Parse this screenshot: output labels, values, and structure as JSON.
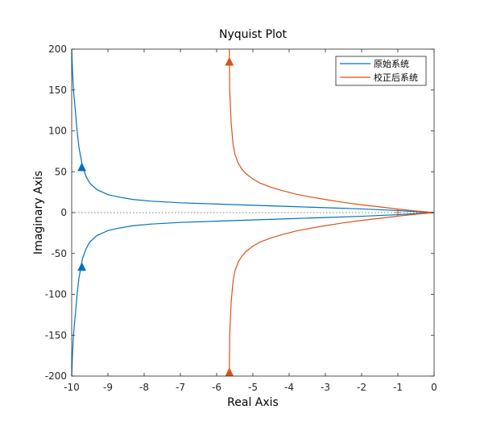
{
  "chart_data": {
    "type": "line",
    "title": "Nyquist Plot",
    "xlabel": "Real Axis",
    "ylabel": "Imaginary Axis",
    "xlim": [
      -10,
      0
    ],
    "ylim": [
      -200,
      200
    ],
    "xticks": [
      -10,
      -9,
      -8,
      -7,
      -6,
      -5,
      -4,
      -3,
      -2,
      -1,
      0
    ],
    "yticks": [
      -200,
      -150,
      -100,
      -50,
      0,
      50,
      100,
      150,
      200
    ],
    "grid": false,
    "legend_position": "top-right",
    "critical_point": {
      "x": -1,
      "y": 0,
      "marker": "+"
    },
    "zero_line": {
      "y": 0,
      "style": "dotted"
    },
    "series": [
      {
        "name": "原始系统",
        "color": "#0072BD",
        "x": [
          -10,
          -9.98,
          -9.95,
          -9.9,
          -9.85,
          -9.8,
          -9.7,
          -9.6,
          -9.5,
          -9.3,
          -9.0,
          -8.7,
          -8.3,
          -7.8,
          -7.0,
          -6.0,
          -5.0,
          -4.0,
          -3.0,
          -2.0,
          -1.0,
          -0.5,
          0
        ],
        "y_upper": [
          200,
          175,
          150,
          125,
          100,
          80,
          56,
          44,
          36,
          28,
          22,
          19,
          16,
          14,
          12,
          10.5,
          9,
          7.5,
          6,
          4.5,
          2.5,
          1.2,
          0
        ],
        "arrows": [
          {
            "x": -9.72,
            "y": 56,
            "direction": "up"
          },
          {
            "x": -9.72,
            "y": -66,
            "direction": "up"
          }
        ]
      },
      {
        "name": "校正后系统",
        "color": "#D95319",
        "x": [
          -5.65,
          -5.64,
          -5.6,
          -5.55,
          -5.5,
          -5.4,
          -5.3,
          -5.2,
          -5.0,
          -4.8,
          -4.5,
          -4.2,
          -3.8,
          -3.4,
          -3.0,
          -2.5,
          -2.0,
          -1.5,
          -1.0,
          -0.5,
          0
        ],
        "y_upper": [
          200,
          150,
          110,
          85,
          72,
          60,
          53,
          48,
          41,
          36,
          31,
          27,
          22.5,
          19,
          16,
          12.5,
          9.5,
          7,
          4.3,
          2,
          0
        ],
        "arrows": [
          {
            "x": -5.65,
            "y": 185,
            "direction": "up"
          },
          {
            "x": -5.65,
            "y": -195,
            "direction": "up"
          }
        ]
      }
    ]
  }
}
